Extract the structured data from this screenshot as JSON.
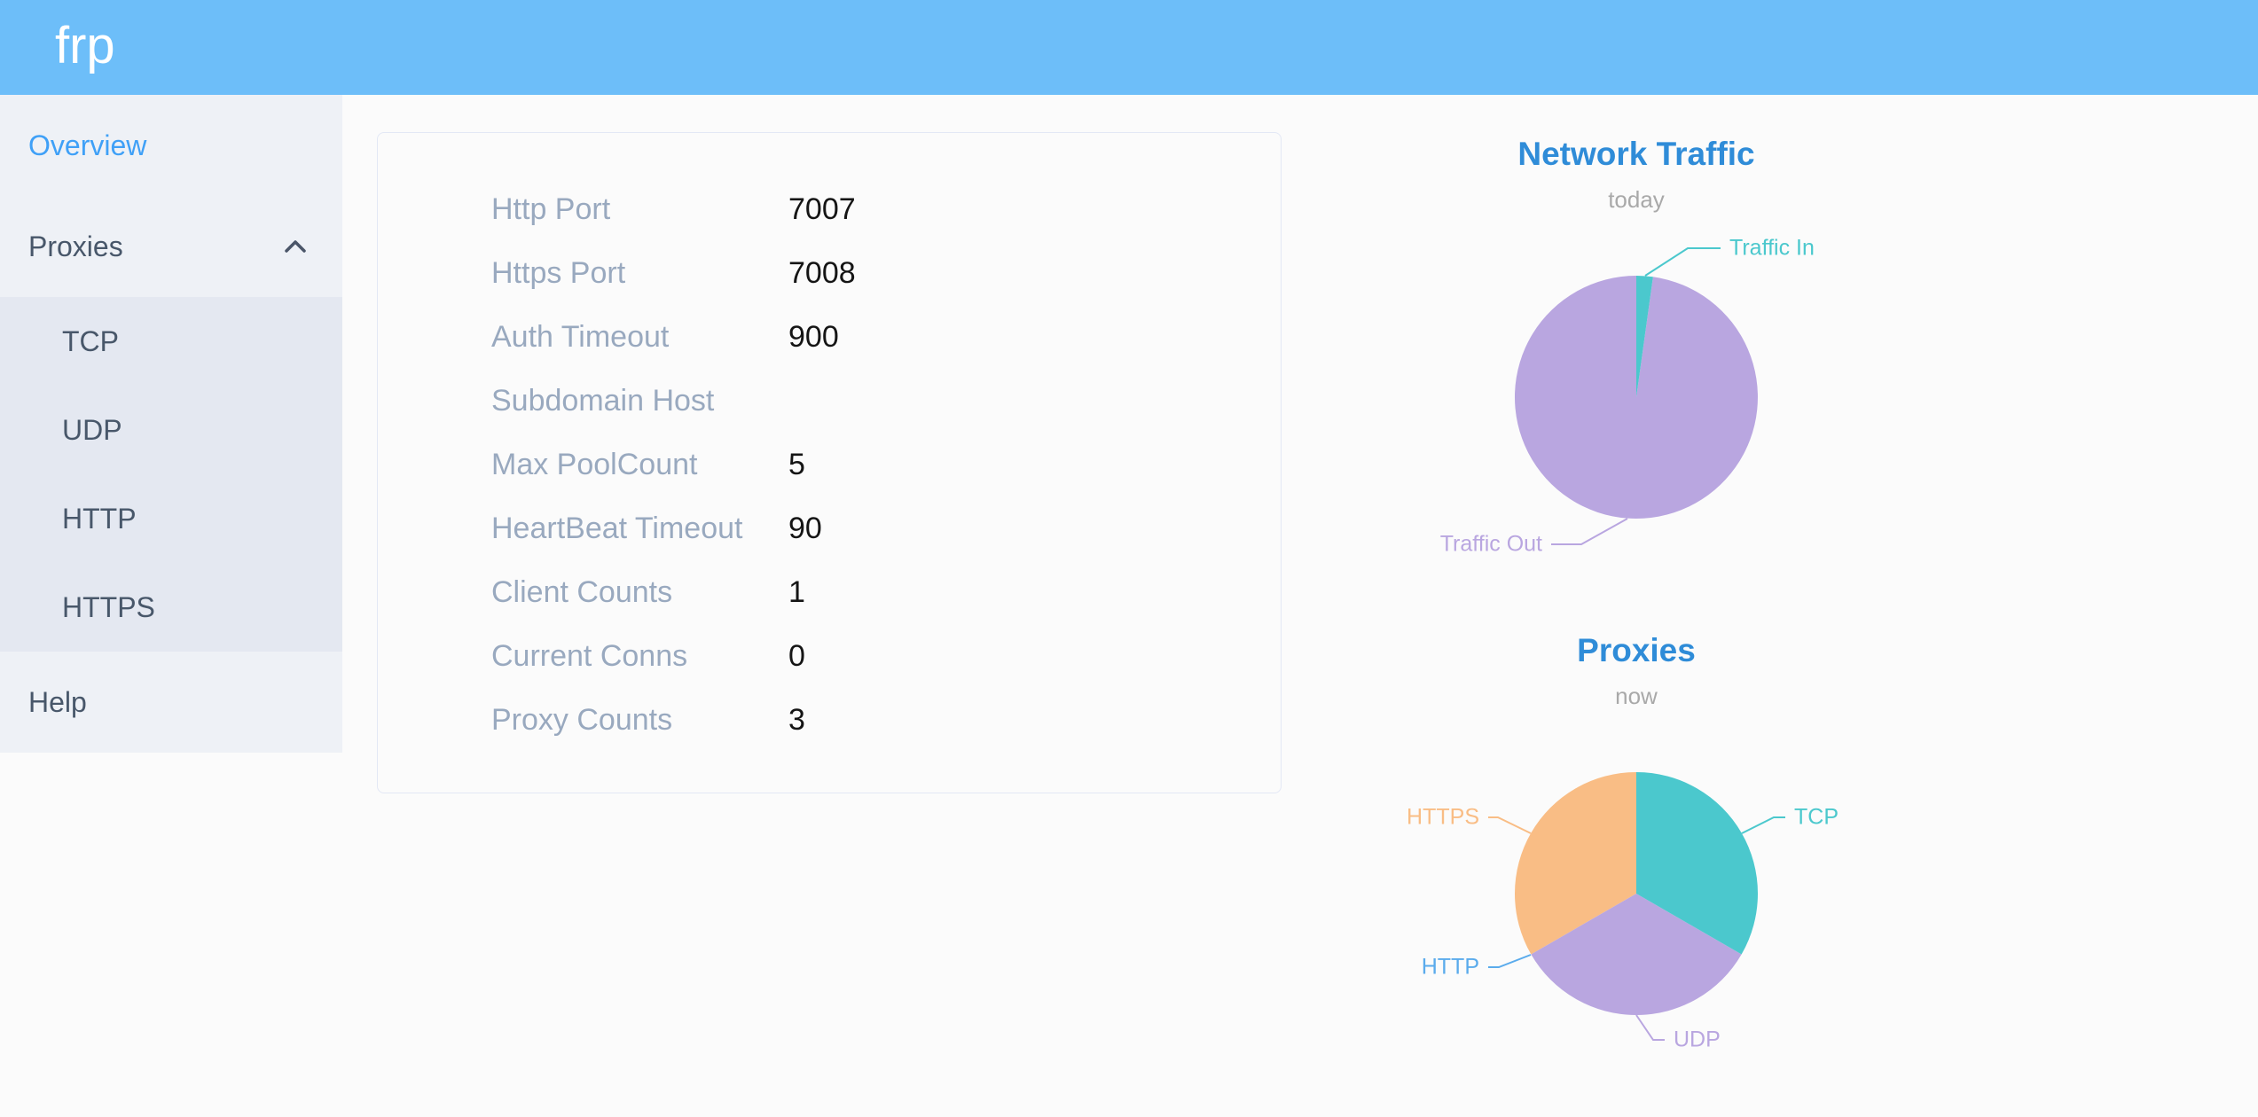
{
  "header": {
    "logo": "frp"
  },
  "sidebar": {
    "overview": "Overview",
    "proxies": "Proxies",
    "proxy_types": [
      "TCP",
      "UDP",
      "HTTP",
      "HTTPS"
    ],
    "help": "Help"
  },
  "server_info": {
    "rows": [
      {
        "label": "Http Port",
        "value": "7007"
      },
      {
        "label": "Https Port",
        "value": "7008"
      },
      {
        "label": "Auth Timeout",
        "value": "900"
      },
      {
        "label": "Subdomain Host",
        "value": ""
      },
      {
        "label": "Max PoolCount",
        "value": "5"
      },
      {
        "label": "HeartBeat Timeout",
        "value": "90"
      },
      {
        "label": "Client Counts",
        "value": "1"
      },
      {
        "label": "Current Conns",
        "value": "0"
      },
      {
        "label": "Proxy Counts",
        "value": "3"
      }
    ]
  },
  "chart_data": [
    {
      "type": "pie",
      "title": "Network Traffic",
      "subtitle": "today",
      "legend_position": "outside-labels-with-leader-lines",
      "slices": [
        {
          "label": "Traffic In",
          "value": 2.2,
          "unit": "percent-estimated",
          "color": "#4bc8cd"
        },
        {
          "label": "Traffic Out",
          "value": 97.8,
          "unit": "percent-estimated",
          "color": "#b9a6e0"
        }
      ]
    },
    {
      "type": "pie",
      "title": "Proxies",
      "subtitle": "now",
      "legend_position": "outside-labels-with-leader-lines",
      "slices": [
        {
          "label": "TCP",
          "value": 1,
          "color": "#4bc8cd"
        },
        {
          "label": "UDP",
          "value": 1,
          "color": "#b9a6e0"
        },
        {
          "label": "HTTP",
          "value": 0,
          "color": "#5aabec"
        },
        {
          "label": "HTTPS",
          "value": 1,
          "color": "#f9bd85"
        }
      ]
    }
  ],
  "colors": {
    "header_bg": "#6dbef9",
    "sidebar_bg": "#eef1f6",
    "submenu_bg": "#e4e8f1",
    "active_menu_item": "#3fa0f7",
    "menu_text": "#48576a",
    "table_label": "#99a9bf",
    "table_value": "#151515",
    "chart_title": "#2f8cd8",
    "chart_subtitle": "#a9a9a9",
    "card_border": "#e3e8f5"
  }
}
